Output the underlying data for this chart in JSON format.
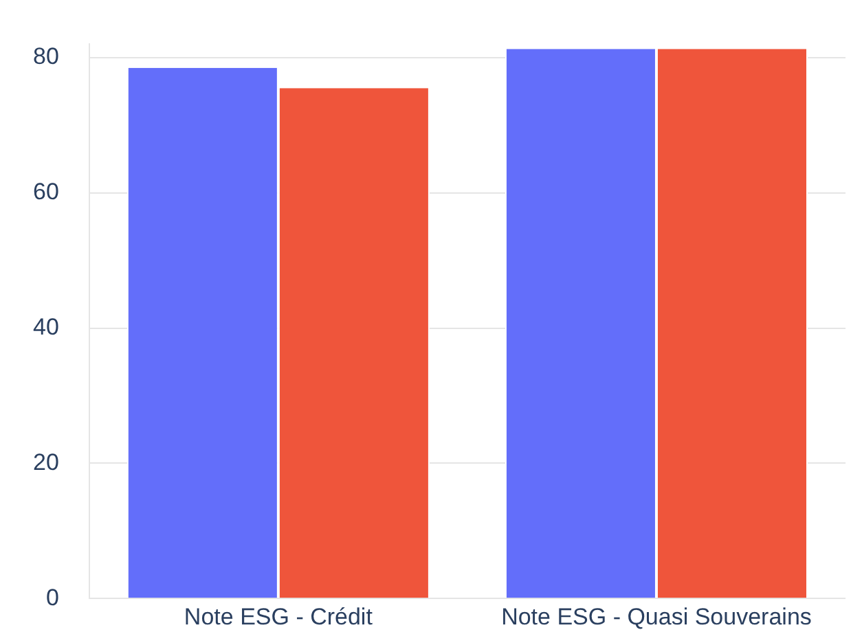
{
  "chart_data": {
    "type": "bar",
    "categories": [
      "Note ESG - Crédit",
      "Note ESG - Quasi Souverains"
    ],
    "series": [
      {
        "color": "#636efa",
        "values": [
          78.5,
          81.3
        ]
      },
      {
        "color": "#ef553b",
        "values": [
          75.5,
          81.3
        ]
      }
    ],
    "ylim": [
      0,
      82
    ],
    "yticks": [
      0,
      20,
      40,
      60,
      80
    ],
    "grid": "y"
  }
}
